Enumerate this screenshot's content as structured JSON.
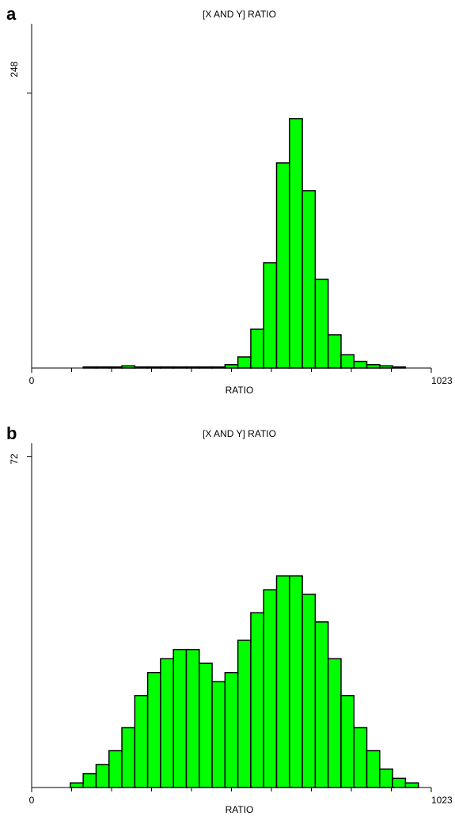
{
  "chart_data": [
    {
      "type": "histogram",
      "panel_label": "a",
      "title": "[X AND Y] RATIO",
      "x_label": "RATIO",
      "color": "#00ff00",
      "bins": [
        0,
        33,
        66,
        99,
        132,
        165,
        198,
        231,
        264,
        297,
        330,
        363,
        396,
        429,
        462,
        495,
        528,
        561,
        594,
        627,
        660,
        693,
        726,
        759,
        792,
        825,
        858,
        891,
        924,
        957,
        990,
        1023
      ],
      "values": [
        0,
        0,
        0,
        0,
        1,
        1,
        1,
        2,
        1,
        1,
        1,
        1,
        1,
        1,
        1,
        3,
        10,
        35,
        95,
        185,
        225,
        160,
        80,
        30,
        12,
        6,
        3,
        2,
        1,
        0,
        0
      ],
      "xlim": [
        0,
        1023
      ],
      "xticks": [
        0,
        1023
      ],
      "ylim": [
        0,
        307
      ],
      "yticks": [
        248
      ]
    },
    {
      "type": "histogram",
      "panel_label": "b",
      "title": "[X AND Y] RATIO",
      "x_label": "RATIO",
      "color": "#00ff00",
      "bins": [
        0,
        33,
        66,
        99,
        132,
        165,
        198,
        231,
        264,
        297,
        330,
        363,
        396,
        429,
        462,
        495,
        528,
        561,
        594,
        627,
        660,
        693,
        726,
        759,
        792,
        825,
        858,
        891,
        924,
        957,
        990,
        1023
      ],
      "values": [
        0,
        0,
        0,
        1,
        3,
        5,
        8,
        13,
        20,
        25,
        28,
        30,
        30,
        27,
        23,
        25,
        32,
        38,
        43,
        46,
        46,
        42,
        36,
        28,
        20,
        13,
        8,
        4,
        2,
        1,
        0
      ],
      "xlim": [
        0,
        1023
      ],
      "xticks": [
        0,
        1023
      ],
      "ylim": [
        0,
        74
      ],
      "yticks": [
        72
      ]
    }
  ]
}
